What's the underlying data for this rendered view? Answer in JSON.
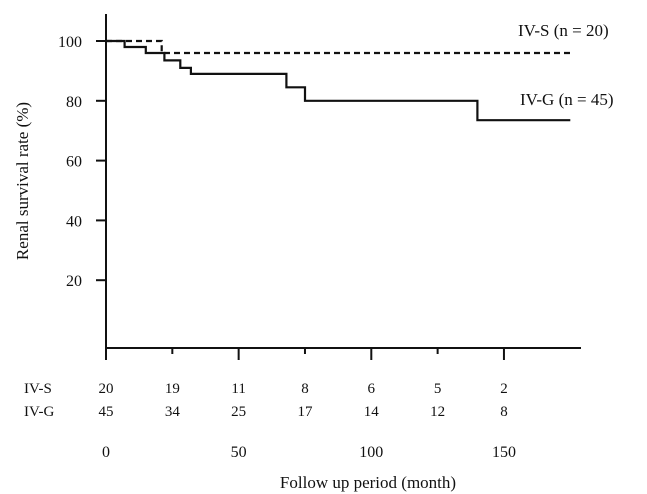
{
  "chart_data": {
    "type": "line",
    "title": "",
    "xlabel": "Follow up period (month)",
    "ylabel": "Renal survival rate (%)",
    "xlim": [
      0,
      180
    ],
    "ylim": [
      0,
      110
    ],
    "x_ticks": [
      0,
      50,
      100,
      150
    ],
    "x_minor_ticks": [
      25,
      75,
      125
    ],
    "y_ticks": [
      20,
      40,
      60,
      80,
      100
    ],
    "grid": false,
    "legend": "inline labels at right end of each curve",
    "series": [
      {
        "name": "IV-S (n = 20)",
        "style": "dashed",
        "points": [
          [
            0,
            100
          ],
          [
            21,
            100
          ],
          [
            21,
            96
          ],
          [
            175,
            96
          ]
        ]
      },
      {
        "name": "IV-G (n = 45)",
        "style": "solid",
        "points": [
          [
            0,
            100
          ],
          [
            7,
            100
          ],
          [
            7,
            98
          ],
          [
            15,
            98
          ],
          [
            15,
            96
          ],
          [
            22,
            96
          ],
          [
            22,
            93.5
          ],
          [
            28,
            93.5
          ],
          [
            28,
            91
          ],
          [
            32,
            91
          ],
          [
            32,
            89
          ],
          [
            68,
            89
          ],
          [
            68,
            84.5
          ],
          [
            75,
            84.5
          ],
          [
            75,
            80
          ],
          [
            140,
            80
          ],
          [
            140,
            73.5
          ],
          [
            175,
            73.5
          ]
        ]
      }
    ],
    "risk_table": {
      "timepoints": [
        0,
        25,
        50,
        75,
        100,
        125,
        150
      ],
      "rows": [
        {
          "label": "IV-S",
          "values": [
            "20",
            "19",
            "11",
            "8",
            "6",
            "5",
            "2"
          ]
        },
        {
          "label": "IV-G",
          "values": [
            "45",
            "34",
            "25",
            "17",
            "14",
            "12",
            "8"
          ]
        }
      ]
    }
  }
}
